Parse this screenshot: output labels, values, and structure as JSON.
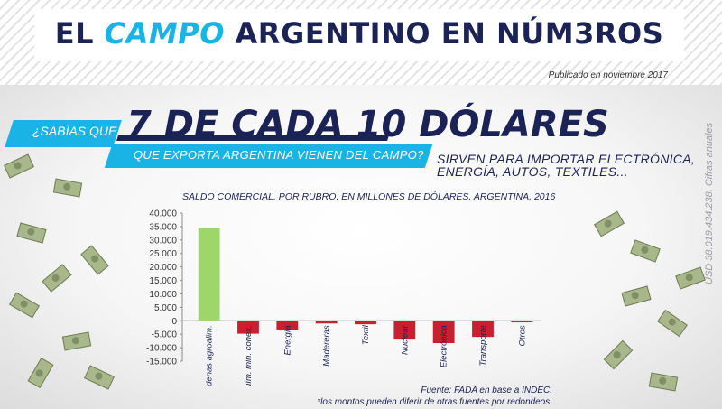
{
  "header": {
    "title_pre": "EL ",
    "title_accent": "CAMPO",
    "title_post": " ARGENTINO EN NÚM3ROS",
    "published": "Publicado en noviembre 2017"
  },
  "headline": {
    "question": "¿SABÍAS QUE",
    "big": "7 DE CADA 10 DÓLARES",
    "sub": "QUE EXPORTA ARGENTINA VIENEN DEL CAMPO?",
    "side": "SIRVEN PARA IMPORTAR ELECTRÓNICA, ENERGÍA, AUTOS, TEXTILES..."
  },
  "vertical_note": "USD 38.019.434.238, Cifras anuales",
  "chart_data": {
    "type": "bar",
    "title": "SALDO COMERCIAL. POR RUBRO, EN MILLONES DE DÓLARES. ARGENTINA, 2016",
    "categories": [
      "Cadenas agroalim.",
      "Quím. min. conex.",
      "Energía",
      "Madereras",
      "Textil",
      "Nuclear",
      "Electrónica",
      "Transporte",
      "Otros"
    ],
    "values": [
      34500,
      -4800,
      -3300,
      -1000,
      -1300,
      -7000,
      -8300,
      -6000,
      -600
    ],
    "colors": [
      "#9fd66a",
      "#c8202f",
      "#c8202f",
      "#c8202f",
      "#c8202f",
      "#c8202f",
      "#c8202f",
      "#c8202f",
      "#c8202f"
    ],
    "ylim": [
      -15000,
      40000
    ],
    "yticks": [
      40000,
      35000,
      30000,
      25000,
      20000,
      15000,
      10000,
      5000,
      0,
      -5000,
      -10000,
      -15000
    ],
    "ytick_labels": [
      "40.000",
      "35.000",
      "30.000",
      "25.000",
      "20.000",
      "15.000",
      "10.000",
      "5.000",
      "0",
      "-5.000",
      "-10.000",
      "-15.000"
    ],
    "xlabel": "",
    "ylabel": "",
    "grid": false,
    "legend": "none"
  },
  "footnotes": {
    "source": "Fuente: FADA en base a INDEC.",
    "note": "*los montos pueden diferir de otras fuentes por redondeos."
  }
}
